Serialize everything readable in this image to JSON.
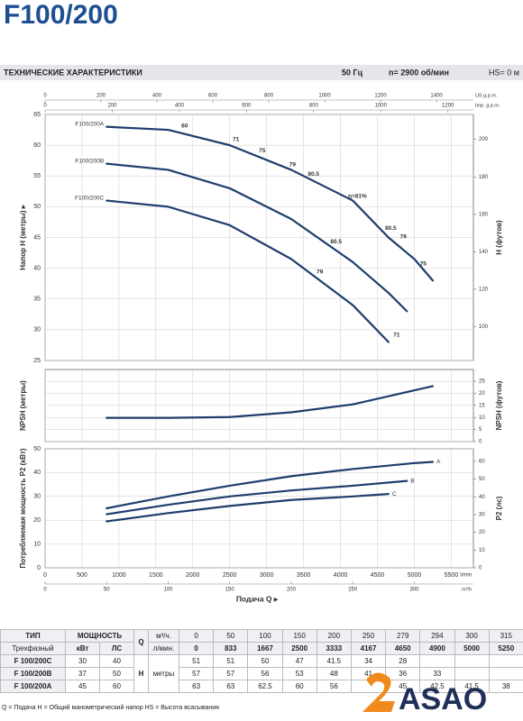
{
  "header": {
    "title": "F100/200",
    "section": "ТЕХНИЧЕСКИЕ ХАРАКТЕРИСТИКИ",
    "frequency": "50 Гц",
    "speed": "n= 2900 об/мин",
    "suction": "HS= 0 м"
  },
  "chart_data": [
    {
      "type": "line",
      "y_label": "Напор H (метры) ▸",
      "y2_label": "H (футов)",
      "ylim": [
        25,
        65
      ],
      "yticks": [
        25,
        30,
        35,
        40,
        45,
        50,
        55,
        60,
        65
      ],
      "y2lim": [
        82,
        213.3
      ],
      "y2ticks": [
        100,
        120,
        140,
        160,
        180,
        200
      ],
      "grid": true,
      "name_position": "start",
      "top_axes": [
        {
          "label": "US g.p.m.",
          "lim": [
            0,
            1532
          ],
          "ticks": [
            0,
            200,
            400,
            600,
            800,
            1000,
            1200,
            1400
          ]
        },
        {
          "label": "Imp. g.p.m.",
          "lim": [
            0,
            1276
          ],
          "ticks": [
            0,
            200,
            400,
            600,
            800,
            1000,
            1200
          ]
        }
      ],
      "series": [
        {
          "name": "F100/200A",
          "color": "#1f3d6e",
          "x": [
            833,
            1667,
            2500,
            3333,
            4167,
            4650,
            4900,
            5000,
            5250
          ],
          "values": [
            63,
            62.5,
            60,
            56,
            51,
            45,
            42.5,
            41.5,
            38
          ]
        },
        {
          "name": "F100/200B",
          "color": "#1f3d6e",
          "x": [
            833,
            1667,
            2500,
            3333,
            4167,
            4650,
            4900
          ],
          "values": [
            57,
            56,
            53,
            48,
            41,
            36,
            33
          ]
        },
        {
          "name": "F100/200C",
          "color": "#1f3d6e",
          "x": [
            833,
            1667,
            2500,
            3333,
            4167,
            4650
          ],
          "values": [
            51,
            50,
            47,
            41.5,
            34,
            28
          ]
        }
      ],
      "annotations": [
        {
          "label": "60",
          "x": 1890,
          "y": 63.1
        },
        {
          "label": "71",
          "x": 2585,
          "y": 60.9
        },
        {
          "label": "75",
          "x": 2940,
          "y": 59.1
        },
        {
          "label": "79",
          "x": 3350,
          "y": 56.8
        },
        {
          "label": "80.5",
          "x": 3635,
          "y": 55.3
        },
        {
          "label": "η=81%",
          "x": 4230,
          "y": 51.7
        },
        {
          "label": "80.5",
          "x": 4680,
          "y": 46.5
        },
        {
          "label": "79",
          "x": 4850,
          "y": 45.1
        },
        {
          "label": "75",
          "x": 5120,
          "y": 40.7
        },
        {
          "label": "71",
          "x": 4760,
          "y": 29.1
        },
        {
          "label": "79",
          "x": 3720,
          "y": 39.4
        },
        {
          "label": "80.5",
          "x": 3940,
          "y": 44.3
        }
      ]
    },
    {
      "type": "line",
      "y_label": "NPSH (метры)",
      "y2_label": "NPSH (футов)",
      "ylim": [
        0,
        9.1
      ],
      "y2lim": [
        0,
        29.9
      ],
      "y2ticks": [
        0,
        5,
        10,
        15,
        20,
        25
      ],
      "grid": true,
      "series": [
        {
          "color": "#1f3d6e",
          "x": [
            833,
            1667,
            2500,
            3333,
            4167,
            5250
          ],
          "values": [
            3,
            3,
            3.1,
            3.7,
            4.7,
            7
          ]
        }
      ]
    },
    {
      "type": "line",
      "y_label": "Потребляемая мощность P2 (кВт)",
      "y2_label": "P2 (лс)",
      "ylim": [
        0,
        50
      ],
      "yticks": [
        0,
        10,
        20,
        30,
        40,
        50
      ],
      "y2lim": [
        0,
        67.05
      ],
      "y2ticks": [
        0,
        10,
        20,
        30,
        40,
        50,
        60
      ],
      "grid": true,
      "name_position": "end",
      "xlim": [
        0,
        5800
      ],
      "xticks": [
        0,
        500,
        1000,
        1500,
        2000,
        2500,
        3000,
        3500,
        4000,
        4500,
        5000,
        5500
      ],
      "x_unit": "l/min",
      "m3h_axis": {
        "label": "m³/h",
        "lim": [
          0,
          348
        ],
        "ticks": [
          0,
          50,
          100,
          150,
          200,
          250,
          300
        ]
      },
      "x_label": "Подача Q ▸",
      "series": [
        {
          "name": "A",
          "color": "#1f3d6e",
          "x": [
            833,
            1667,
            2500,
            3333,
            4167,
            5000,
            5250
          ],
          "values": [
            25,
            30,
            34.5,
            38.5,
            41.5,
            44,
            44.5
          ]
        },
        {
          "name": "B",
          "color": "#1f3d6e",
          "x": [
            833,
            1667,
            2500,
            3333,
            4167,
            4900
          ],
          "values": [
            22.5,
            26.5,
            30,
            32.5,
            34.5,
            36.5
          ]
        },
        {
          "name": "C",
          "color": "#1f3d6e",
          "x": [
            833,
            1667,
            2500,
            3333,
            4167,
            4650
          ],
          "values": [
            19.5,
            23,
            26,
            28.5,
            30,
            31
          ]
        }
      ]
    }
  ],
  "table": {
    "type_label": "ТИП",
    "power_label": "МОЩНОСТЬ",
    "q_label": "Q",
    "q_unit_m3h": "м³/ч.",
    "q_unit_lmin": "л/мин.",
    "phase_label": "Трехфазный",
    "kw_label": "кВт",
    "hp_label": "ЛС",
    "h_label": "H",
    "h_unit": "метры",
    "flow_m3h": [
      0,
      50,
      100,
      150,
      200,
      250,
      279,
      294,
      300,
      315
    ],
    "flow_lmin": [
      0,
      833,
      1667,
      2500,
      3333,
      4167,
      4650,
      4900,
      5000,
      5250
    ],
    "rows": [
      {
        "model": "F 100/200C",
        "kw": 30,
        "hp": 40,
        "head": [
          51,
          51,
          50,
          47,
          41.5,
          34,
          28,
          null,
          null,
          null
        ]
      },
      {
        "model": "F 100/200B",
        "kw": 37,
        "hp": 50,
        "head": [
          57,
          57,
          56,
          53,
          48,
          41,
          36,
          33,
          null,
          null
        ]
      },
      {
        "model": "F 100/200A",
        "kw": 45,
        "hp": 60,
        "head": [
          63,
          63,
          62.5,
          60,
          56,
          null,
          45,
          42.5,
          41.5,
          38
        ]
      }
    ]
  },
  "footer": "Q = Подача  H = Общий манометрический напор  HS = Высота всасывания",
  "logo": "ASAO"
}
